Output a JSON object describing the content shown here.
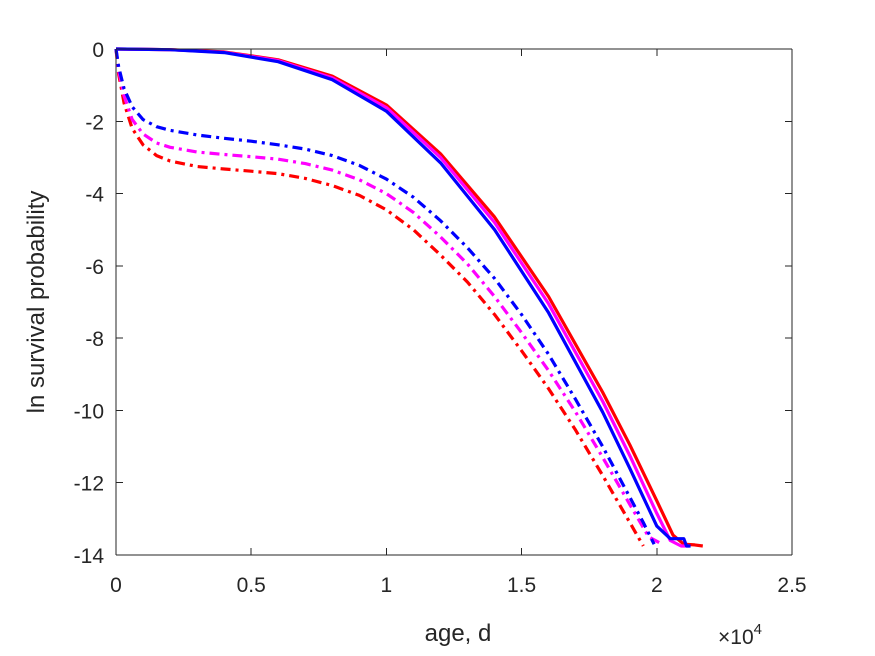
{
  "chart_data": {
    "type": "line",
    "title": "",
    "xlabel": "age, d",
    "ylabel": "ln survival probability",
    "x_exponent_label": "×10",
    "x_exponent_power": "4",
    "xlim": [
      0,
      25000
    ],
    "ylim": [
      -14,
      0
    ],
    "xticks": [
      0,
      5000,
      10000,
      15000,
      20000,
      25000
    ],
    "xtick_labels": [
      "0",
      "0.5",
      "1",
      "1.5",
      "2",
      "2.5"
    ],
    "yticks": [
      0,
      -2,
      -4,
      -6,
      -8,
      -10,
      -12,
      -14
    ],
    "ytick_labels": [
      "0",
      "-2",
      "-4",
      "-6",
      "-8",
      "-10",
      "-12",
      "-14"
    ],
    "grid": false,
    "legend": "none",
    "series": [
      {
        "color": "#ff0000",
        "style": "solid",
        "x": [
          0,
          2000,
          4000,
          6000,
          8000,
          10000,
          12000,
          14000,
          16000,
          18000,
          19000,
          20000,
          20600,
          21000,
          21400,
          21700
        ],
        "y": [
          0,
          -0.02,
          -0.08,
          -0.3,
          -0.75,
          -1.55,
          -2.9,
          -4.65,
          -6.85,
          -9.5,
          -10.95,
          -12.5,
          -13.45,
          -13.7,
          -13.72,
          -13.75
        ]
      },
      {
        "color": "#ff00ff",
        "style": "solid",
        "x": [
          0,
          2000,
          4000,
          6000,
          8000,
          10000,
          12000,
          14000,
          16000,
          18000,
          19000,
          20000,
          20500,
          20900,
          21200
        ],
        "y": [
          0,
          -0.02,
          -0.09,
          -0.32,
          -0.8,
          -1.62,
          -3.0,
          -4.8,
          -7.05,
          -9.75,
          -11.25,
          -12.85,
          -13.6,
          -13.75,
          -13.75
        ]
      },
      {
        "color": "#0000ff",
        "style": "solid",
        "x": [
          0,
          2000,
          4000,
          6000,
          8000,
          10000,
          12000,
          14000,
          16000,
          18000,
          19000,
          20000,
          20500,
          20800,
          21000,
          21100,
          21250
        ],
        "y": [
          0,
          -0.02,
          -0.1,
          -0.35,
          -0.85,
          -1.72,
          -3.15,
          -5.0,
          -7.3,
          -10.05,
          -11.6,
          -13.2,
          -13.55,
          -13.55,
          -13.55,
          -13.75,
          -13.75
        ]
      },
      {
        "color": "#ff0000",
        "style": "dashdot",
        "x": [
          0,
          100,
          300,
          600,
          1000,
          1500,
          2000,
          3000,
          4000,
          5000,
          6000,
          7000,
          8000,
          9000,
          10000,
          11000,
          12000,
          13000,
          14000,
          15000,
          16000,
          17000,
          18000,
          19000,
          19500
        ],
        "y": [
          0,
          -0.7,
          -1.5,
          -2.2,
          -2.65,
          -2.95,
          -3.1,
          -3.25,
          -3.32,
          -3.38,
          -3.45,
          -3.58,
          -3.78,
          -4.05,
          -4.45,
          -5.0,
          -5.7,
          -6.45,
          -7.35,
          -8.35,
          -9.4,
          -10.55,
          -11.8,
          -13.1,
          -13.75
        ]
      },
      {
        "color": "#ff00ff",
        "style": "dashdot",
        "x": [
          0,
          100,
          300,
          600,
          1000,
          1500,
          2000,
          3000,
          4000,
          5000,
          6000,
          7000,
          8000,
          9000,
          10000,
          11000,
          12000,
          13000,
          14000,
          15000,
          16000,
          17000,
          18000,
          19000,
          19700,
          20200
        ],
        "y": [
          0,
          -0.6,
          -1.3,
          -1.95,
          -2.35,
          -2.6,
          -2.72,
          -2.85,
          -2.92,
          -2.98,
          -3.05,
          -3.17,
          -3.35,
          -3.62,
          -4.0,
          -4.52,
          -5.2,
          -5.95,
          -6.85,
          -7.85,
          -8.9,
          -10.05,
          -11.3,
          -12.6,
          -13.5,
          -13.7
        ]
      },
      {
        "color": "#0000ff",
        "style": "dashdot",
        "x": [
          0,
          100,
          300,
          600,
          1000,
          1500,
          2000,
          3000,
          4000,
          5000,
          6000,
          7000,
          8000,
          9000,
          10000,
          11000,
          12000,
          13000,
          14000,
          15000,
          16000,
          17000,
          18000,
          19000,
          19500,
          19900
        ],
        "y": [
          0,
          -0.5,
          -1.1,
          -1.6,
          -1.95,
          -2.15,
          -2.25,
          -2.38,
          -2.47,
          -2.55,
          -2.65,
          -2.77,
          -2.95,
          -3.22,
          -3.6,
          -4.1,
          -4.75,
          -5.5,
          -6.35,
          -7.35,
          -8.45,
          -9.7,
          -11.0,
          -12.4,
          -13.1,
          -13.7
        ]
      }
    ]
  }
}
